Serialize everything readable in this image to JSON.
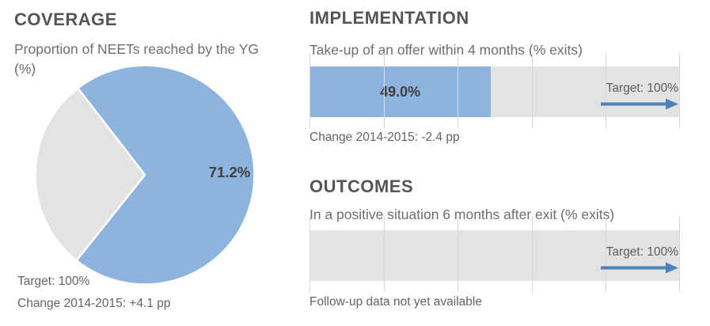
{
  "colors": {
    "accent_blue": "#8DB4DE",
    "remainder_gray": "#E3E3E3",
    "gridline": "#D9D9D9",
    "arrow_blue": "#4F81BD",
    "heading_text": "#555555",
    "subtitle_text": "#6E6E6E",
    "small_text": "#646464",
    "data_label_text": "#3F3F3F"
  },
  "panels": {
    "coverage": {
      "title": "COVERAGE",
      "subtitle": "Proportion of NEETs reached by the YG (%)",
      "target_label": "Target: 100%",
      "change_label": "Change 2014-2015: +4.1 pp"
    },
    "implementation": {
      "title": "IMPLEMENTATION",
      "subtitle": "Take-up of an offer within 4 months (% exits)",
      "target_label": "Target: 100%",
      "change_label": "Change 2014-2015: -2.4 pp"
    },
    "outcomes": {
      "title": "OUTCOMES",
      "subtitle": "In a positive situation 6 months after exit (% exits)",
      "target_label": "Target: 100%",
      "note": "Follow-up data not yet available"
    }
  },
  "chart_data": [
    {
      "type": "pie",
      "title": "Proportion of NEETs reached by the YG (%)",
      "slices": [
        {
          "label": "NEETs reached by the YG",
          "value": 71.2,
          "data_label": "71.2%",
          "color_key": "accent_blue"
        },
        {
          "label": "NEETs not reached",
          "value": 28.8,
          "data_label": "",
          "color_key": "remainder_gray"
        }
      ],
      "start_angle_deg": -37.7,
      "clockwise": true,
      "target_pct": 100,
      "change_2014_2015_pp": "+4.1"
    },
    {
      "type": "bar",
      "title": "Take-up of an offer within 4 months (% exits)",
      "orientation": "horizontal",
      "categories": [
        "Take-up of an offer within 4 months"
      ],
      "values": [
        49.0
      ],
      "data_label": "49.0%",
      "xlim": [
        0,
        100
      ],
      "gridline_step_pct": 20,
      "target_pct": 100,
      "change_2014_2015_pp": "-2.4"
    },
    {
      "type": "bar",
      "title": "In a positive situation 6 months after exit (% exits)",
      "orientation": "horizontal",
      "categories": [
        "In a positive situation 6 months after exit"
      ],
      "values": [
        null
      ],
      "data_label": "",
      "xlim": [
        0,
        100
      ],
      "gridline_step_pct": 20,
      "target_pct": 100,
      "note": "Follow-up data not yet available"
    }
  ]
}
